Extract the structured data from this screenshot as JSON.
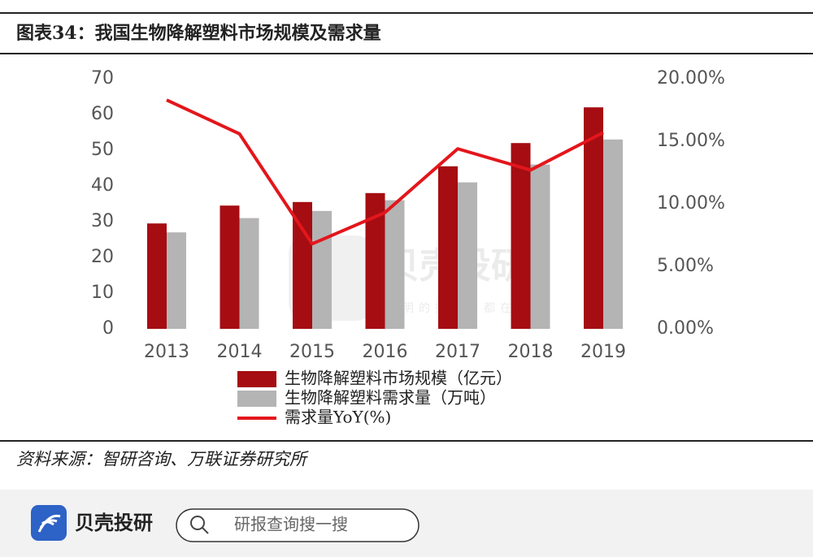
{
  "chart_data": {
    "type": "bar",
    "title": "图表34：我国生物降解塑料市场规模及需求量",
    "source": "资料来源：智研咨询、万联证券研究所",
    "categories": [
      "2013",
      "2014",
      "2015",
      "2016",
      "2017",
      "2018",
      "2019"
    ],
    "series": [
      {
        "name": "生物降解塑料市场规模（亿元）",
        "type": "bar",
        "axis": "y",
        "color": "#a50d12",
        "values": [
          29.5,
          34.5,
          35.5,
          38,
          45.5,
          52,
          62
        ]
      },
      {
        "name": "生物降解塑料需求量（万吨）",
        "type": "bar",
        "axis": "y",
        "color": "#b4b4b4",
        "values": [
          27,
          31,
          33,
          36,
          41,
          46,
          53
        ]
      },
      {
        "name": "需求量YoY(%)",
        "type": "line",
        "axis": "y2",
        "color": "#e3161c",
        "values": [
          18.3,
          15.6,
          6.8,
          9.3,
          14.4,
          12.7,
          15.7
        ]
      }
    ],
    "ylim": [
      0,
      70
    ],
    "yticks": [
      0,
      10,
      20,
      30,
      40,
      50,
      60,
      70
    ],
    "y2lim": [
      0,
      20
    ],
    "y2ticks": [
      {
        "value": 0,
        "label": "0.00%"
      },
      {
        "value": 5,
        "label": "5.00%"
      },
      {
        "value": 10,
        "label": "10.00%"
      },
      {
        "value": 15,
        "label": "15.00%"
      },
      {
        "value": 20,
        "label": "20.00%"
      }
    ],
    "grid": false
  },
  "watermark": {
    "brand": "贝壳投研",
    "slogan": "聪明的投资者都在关注"
  },
  "footer": {
    "brand": "贝壳投研",
    "search_placeholder": "研报查询搜一搜"
  }
}
